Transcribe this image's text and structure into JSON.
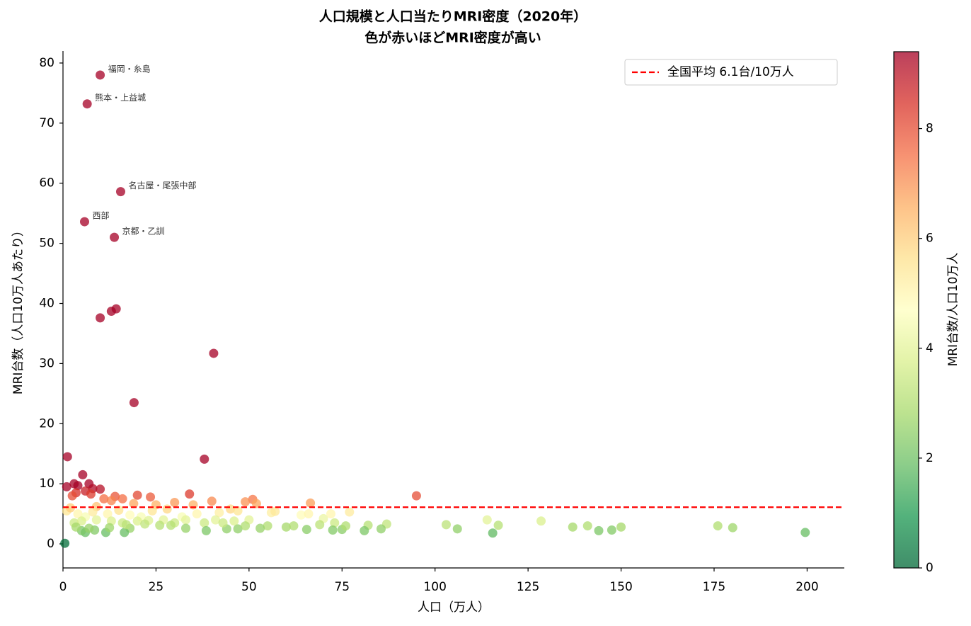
{
  "chart_data": {
    "type": "scatter",
    "title": "人口規模と人口当たりMRI密度（2020年）",
    "subtitle": "色が赤いほどMRI密度が高い",
    "xlabel": "人口（万人）",
    "ylabel": "MRI台数（人口10万人あたり）",
    "xlim": [
      0,
      210
    ],
    "xticks": [
      0,
      25,
      50,
      75,
      100,
      125,
      150,
      175,
      200
    ],
    "ylim": [
      -4,
      82
    ],
    "yticks": [
      0,
      10,
      20,
      30,
      40,
      50,
      60,
      70,
      80
    ],
    "grid": false,
    "x": [
      10,
      6.5,
      15.5,
      5.8,
      13.8,
      10,
      13,
      14.3,
      40.5,
      19.1,
      38,
      1.2,
      1,
      3,
      4,
      5.3,
      7,
      8,
      10,
      3.5,
      6,
      2.5,
      7.5,
      34,
      95,
      20,
      14,
      23.5,
      16,
      51,
      40,
      30,
      49,
      66.5,
      11,
      9,
      19,
      13,
      25,
      35,
      45,
      52,
      1,
      2,
      4,
      6,
      8,
      12,
      15,
      18,
      21,
      24,
      28,
      32,
      36,
      42,
      47,
      56,
      64,
      66,
      70,
      72,
      77,
      114,
      128.5,
      3,
      5,
      9,
      13,
      16,
      20,
      23,
      27,
      30,
      33,
      38,
      41,
      46,
      50,
      55,
      60,
      69,
      73,
      82,
      87,
      103,
      117,
      141,
      137,
      150,
      176,
      180,
      199.5,
      115.5,
      144,
      147.5,
      106,
      81,
      85.5,
      75,
      72.5,
      65.5,
      53,
      47,
      44,
      38.5,
      33,
      29,
      26,
      22,
      18,
      16.5,
      11.5,
      8.5,
      6,
      5,
      3.5,
      0.5,
      7,
      12.5,
      17,
      62,
      49,
      43,
      57,
      76
    ],
    "values": [
      78,
      73.2,
      58.6,
      53.6,
      51,
      37.6,
      38.7,
      39.1,
      31.7,
      23.5,
      14.1,
      14.5,
      9.5,
      10,
      9.7,
      11.5,
      10,
      9.2,
      9.1,
      8.5,
      8.8,
      8,
      8.3,
      8.3,
      8,
      8.1,
      7.9,
      7.8,
      7.5,
      7.4,
      7.1,
      6.9,
      7,
      6.8,
      7.5,
      6.2,
      6.7,
      7.2,
      6.5,
      6.5,
      5.8,
      6.7,
      5.5,
      6,
      5,
      4.5,
      5.3,
      5,
      5.6,
      4.8,
      4.5,
      5.5,
      5.8,
      4.5,
      5,
      5.2,
      5.5,
      5.2,
      4.8,
      5,
      4.2,
      5,
      5.3,
      4,
      3.8,
      3.5,
      3.8,
      4,
      3.8,
      3.5,
      3.8,
      3.9,
      4,
      3.5,
      4,
      3.5,
      4,
      3.8,
      4,
      3,
      2.8,
      3.2,
      3.5,
      3.1,
      3.3,
      3.2,
      3.1,
      3,
      2.8,
      2.8,
      3,
      2.7,
      1.9,
      1.8,
      2.2,
      2.3,
      2.5,
      2.2,
      2.5,
      2.4,
      2.3,
      2.4,
      2.6,
      2.5,
      2.5,
      2.2,
      2.6,
      3.1,
      3.1,
      3.3,
      2.6,
      1.9,
      1.9,
      2.3,
      1.9,
      2.2,
      2.8,
      0.1,
      2.6,
      2.7,
      3.2,
      3,
      3,
      3.5,
      5.4,
      3
    ],
    "labels": [
      "福岡・糸島",
      "熊本・上益城",
      "名古屋・尾張中部",
      "西部",
      "京都・乙訓",
      null,
      null,
      null,
      null,
      null,
      null,
      null,
      null,
      null,
      null,
      null,
      null,
      null,
      null,
      null,
      null,
      null,
      null,
      null,
      null,
      null,
      null,
      null,
      null,
      null,
      null,
      null,
      null,
      null,
      null,
      null,
      null,
      null,
      null,
      null,
      null,
      null,
      null,
      null,
      null,
      null,
      null,
      null,
      null,
      null,
      null,
      null,
      null,
      null,
      null,
      null,
      null,
      null,
      null,
      null,
      null,
      null,
      null,
      null,
      null,
      null,
      null,
      null,
      null,
      null,
      null,
      null,
      null,
      null,
      null,
      null,
      null,
      null,
      null,
      null,
      null,
      null,
      null,
      null,
      null,
      null,
      null,
      null,
      null,
      null,
      null,
      null,
      null,
      null,
      null,
      null,
      null,
      null,
      null,
      null,
      null,
      null,
      null,
      null,
      null,
      null,
      null,
      null,
      null,
      null,
      null,
      null,
      null,
      null,
      null,
      null,
      null,
      null,
      null,
      null,
      null,
      null,
      null,
      null,
      null
    ],
    "reference_line": {
      "value": 6.1,
      "label": "全国平均 6.1台/10万人",
      "color": "#ff0000"
    },
    "legend_loc": "upper right",
    "colorbar": {
      "label": "MRI台数/人口10万人",
      "clim": [
        0,
        9.4
      ],
      "ticks": [
        0,
        2,
        4,
        6,
        8
      ],
      "colormap": [
        "#006837",
        "#1a9850",
        "#66bd63",
        "#a6d96a",
        "#d9ef8b",
        "#ffffbf",
        "#fee08b",
        "#fdae61",
        "#f46d43",
        "#d73027",
        "#a50026"
      ]
    }
  }
}
